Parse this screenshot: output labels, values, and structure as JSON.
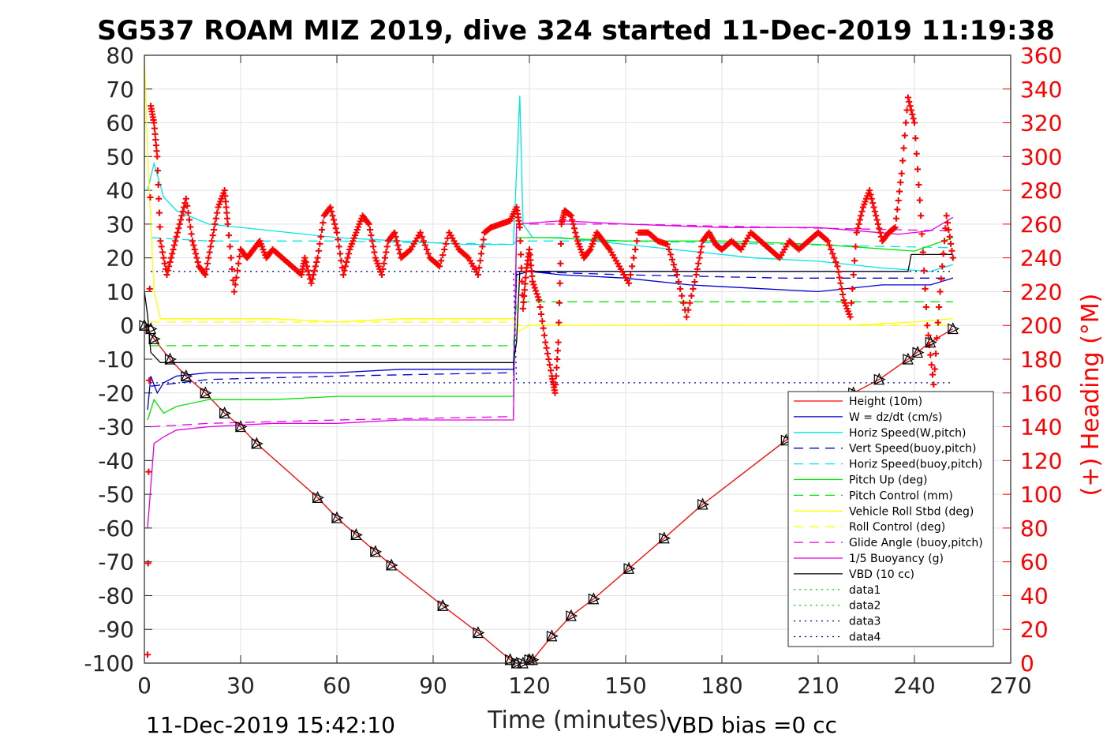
{
  "chart_data": {
    "type": "line",
    "title": "SG537 ROAM MIZ 2019, dive 324 started 11-Dec-2019 11:19:38",
    "xlabel": "Time (minutes)",
    "ylabel_right": "(+) Heading (°M)",
    "xlim": [
      0,
      270
    ],
    "ylim_left": [
      -100,
      80
    ],
    "ylim_right": [
      0,
      360
    ],
    "x_ticks": [
      "0",
      "30",
      "60",
      "90",
      "120",
      "150",
      "180",
      "210",
      "240",
      "270"
    ],
    "y_ticks_left": [
      "80",
      "70",
      "60",
      "50",
      "40",
      "30",
      "20",
      "10",
      "0",
      "-10",
      "-20",
      "-30",
      "-40",
      "-50",
      "-60",
      "-70",
      "-80",
      "-90",
      "-100"
    ],
    "y_ticks_right": [
      "360",
      "340",
      "320",
      "300",
      "280",
      "260",
      "240",
      "220",
      "200",
      "180",
      "160",
      "140",
      "120",
      "100",
      "80",
      "60",
      "40",
      "20",
      "0"
    ],
    "grid": true,
    "legend_position": "bottom-right",
    "footer_left": "11-Dec-2019 15:42:10",
    "footer_right": "VBD bias =0 cc",
    "series": [
      {
        "name": "Height (10m)",
        "color": "#ff0000",
        "style": "solid",
        "x": [
          0,
          3,
          8,
          13,
          19,
          25,
          30,
          35,
          54,
          60,
          66,
          72,
          77,
          93,
          104,
          114,
          116,
          118,
          121,
          127,
          133,
          140,
          151,
          162,
          174,
          200,
          221,
          229,
          238,
          245,
          252
        ],
        "y": [
          0,
          -4,
          -10,
          -15,
          -20,
          -26,
          -30,
          -35,
          -51,
          -57,
          -62,
          -67,
          -71,
          -83,
          -91,
          -99,
          -100,
          -100,
          -99,
          -92,
          -86,
          -81,
          -72,
          -63,
          -53,
          -34,
          -20,
          -16,
          -10,
          -5,
          -1
        ]
      },
      {
        "name": "W = dz/dt (cm/s)",
        "color": "#0000cc",
        "style": "solid",
        "x": [
          1,
          2,
          4,
          6,
          10,
          20,
          40,
          60,
          80,
          100,
          115,
          116,
          120,
          130,
          150,
          170,
          190,
          210,
          230,
          245,
          252
        ],
        "y": [
          -25,
          -15,
          -20,
          -17,
          -15,
          -14,
          -14,
          -14,
          -13,
          -13,
          -13,
          15,
          16,
          15,
          14,
          12,
          11,
          10,
          12,
          12,
          14
        ]
      },
      {
        "name": "Horiz Speed(W,pitch)",
        "color": "#00e5e5",
        "style": "solid",
        "x": [
          1,
          3,
          6,
          10,
          20,
          40,
          60,
          80,
          100,
          115,
          117,
          118,
          121,
          130,
          150,
          170,
          190,
          210,
          230,
          245,
          252
        ],
        "y": [
          40,
          48,
          38,
          34,
          30,
          28,
          26,
          25,
          24,
          24,
          68,
          30,
          26,
          26,
          24,
          22,
          20,
          19,
          17,
          16,
          18
        ]
      },
      {
        "name": "Vert Speed(buoy,pitch)",
        "color": "#0000cc",
        "style": "dash",
        "x": [
          2,
          20,
          60,
          115,
          116,
          150,
          200,
          252
        ],
        "y": [
          -18,
          -16,
          -15,
          -14,
          16,
          15,
          14,
          14
        ]
      },
      {
        "name": "Horiz Speed(buoy,pitch)",
        "color": "#00e5e5",
        "style": "dash",
        "x": [
          2,
          20,
          60,
          115,
          116,
          150,
          200,
          252
        ],
        "y": [
          26,
          25,
          25,
          24,
          25,
          25,
          24,
          23
        ]
      },
      {
        "name": "Pitch Up (deg)",
        "color": "#00e600",
        "style": "solid",
        "x": [
          1,
          3,
          6,
          10,
          20,
          40,
          60,
          80,
          100,
          115,
          116,
          125,
          150,
          180,
          210,
          240,
          252
        ],
        "y": [
          -28,
          -22,
          -26,
          -24,
          -22,
          -22,
          -21,
          -21,
          -21,
          -21,
          26,
          26,
          25,
          25,
          24,
          22,
          26
        ]
      },
      {
        "name": "Pitch Control (mm)",
        "color": "#00e600",
        "style": "dash",
        "x": [
          2,
          115,
          116,
          252
        ],
        "y": [
          -6,
          -6,
          7,
          7
        ]
      },
      {
        "name": "Vehicle Roll Stbd (deg)",
        "color": "#ffff00",
        "style": "solid",
        "x": [
          0,
          1,
          3,
          5,
          8,
          20,
          40,
          60,
          80,
          100,
          115,
          116,
          120,
          140,
          160,
          180,
          200,
          220,
          240,
          252
        ],
        "y": [
          80,
          50,
          10,
          2,
          2,
          2,
          2,
          1,
          2,
          2,
          2,
          -2,
          0,
          0,
          0,
          0,
          0,
          0,
          1,
          2
        ]
      },
      {
        "name": "Roll Control (deg)",
        "color": "#ffff00",
        "style": "dash",
        "x": [
          2,
          115,
          116,
          252
        ],
        "y": [
          1,
          1,
          0,
          0
        ]
      },
      {
        "name": "Glide Angle (buoy,pitch)",
        "color": "#e500e5",
        "style": "dash",
        "x": [
          2,
          20,
          60,
          115,
          116,
          150,
          200,
          252
        ],
        "y": [
          -30,
          -29,
          -28,
          -27,
          30,
          30,
          29,
          28
        ]
      },
      {
        "name": "1/5 Buoyancy (g)",
        "color": "#e500e5",
        "style": "solid",
        "x": [
          1,
          3,
          6,
          10,
          20,
          40,
          60,
          80,
          100,
          115,
          116,
          130,
          150,
          180,
          210,
          235,
          245,
          252
        ],
        "y": [
          -60,
          -35,
          -33,
          -31,
          -30,
          -29,
          -29,
          -28,
          -28,
          -28,
          30,
          31,
          30,
          29,
          29,
          27,
          28,
          32
        ]
      },
      {
        "name": "VBD (10 cc)",
        "color": "#000000",
        "style": "solid",
        "x": [
          0,
          1,
          2,
          5,
          10,
          115,
          116,
          117,
          120,
          130,
          238,
          239,
          252
        ],
        "y": [
          10,
          3,
          -8,
          -11,
          -11,
          -11,
          -5,
          16,
          16,
          16,
          16,
          21,
          21
        ]
      },
      {
        "name": "data1",
        "color": "#00e600",
        "style": "dot",
        "x": [],
        "y": []
      },
      {
        "name": "data2",
        "color": "#00e600",
        "style": "dot",
        "x": [],
        "y": []
      },
      {
        "name": "data3",
        "color": "#0000aa",
        "style": "dot",
        "x": [
          2,
          115,
          116,
          252
        ],
        "y": [
          16,
          16,
          -17,
          -17
        ]
      },
      {
        "name": "data4",
        "color": "#0000aa",
        "style": "dot",
        "x": [
          2,
          115,
          116,
          252
        ],
        "y": [
          -17,
          -17,
          16,
          16
        ]
      }
    ],
    "heading": {
      "name": "(+) Heading (°M)",
      "color": "#ff0000",
      "marker": "+",
      "x": [
        1,
        2,
        3,
        4,
        5,
        7,
        9,
        11,
        13,
        15,
        17,
        19,
        21,
        23,
        25,
        26,
        28,
        30,
        32,
        34,
        36,
        38,
        40,
        43,
        46,
        49,
        50,
        52,
        54,
        56,
        58,
        60,
        62,
        64,
        66,
        68,
        70,
        72,
        74,
        76,
        78,
        80,
        83,
        86,
        89,
        92,
        95,
        98,
        101,
        104,
        106,
        108,
        111,
        114,
        116,
        117,
        118,
        119,
        120,
        121,
        123,
        125,
        127,
        128,
        129,
        130,
        131,
        133,
        135,
        137,
        139,
        141,
        143,
        145,
        148,
        151,
        154,
        157,
        160,
        163,
        166,
        169,
        172,
        174,
        176,
        178,
        180,
        183,
        186,
        189,
        192,
        195,
        198,
        201,
        204,
        207,
        210,
        213,
        216,
        218,
        220,
        222,
        224,
        226,
        228,
        230,
        232,
        234,
        236,
        238,
        240,
        242,
        244,
        246,
        248,
        250,
        252
      ],
      "y": [
        5,
        330,
        320,
        300,
        250,
        230,
        245,
        260,
        275,
        250,
        235,
        230,
        250,
        270,
        280,
        260,
        220,
        245,
        240,
        245,
        250,
        240,
        245,
        240,
        235,
        230,
        240,
        225,
        240,
        265,
        270,
        255,
        230,
        245,
        255,
        265,
        260,
        240,
        230,
        250,
        255,
        240,
        245,
        255,
        240,
        235,
        255,
        245,
        240,
        230,
        255,
        258,
        260,
        262,
        270,
        258,
        210,
        232,
        245,
        226,
        215,
        190,
        170,
        160,
        190,
        260,
        268,
        265,
        250,
        240,
        245,
        255,
        250,
        245,
        235,
        225,
        255,
        255,
        250,
        248,
        230,
        205,
        230,
        250,
        255,
        248,
        245,
        250,
        245,
        255,
        250,
        245,
        240,
        250,
        245,
        250,
        255,
        250,
        235,
        215,
        205,
        255,
        270,
        280,
        265,
        250,
        255,
        258,
        290,
        335,
        320,
        265,
        200,
        165,
        220,
        265,
        240
      ]
    },
    "markers": {
      "x": [
        0,
        2,
        3,
        8,
        13,
        19,
        25,
        30,
        35,
        54,
        60,
        66,
        72,
        77,
        93,
        104,
        114,
        116,
        118,
        120,
        121,
        127,
        133,
        140,
        151,
        162,
        174,
        200,
        221,
        229,
        238,
        241,
        245,
        252
      ],
      "y": [
        0,
        -1,
        -4,
        -10,
        -15,
        -20,
        -26,
        -30,
        -35,
        -51,
        -57,
        -62,
        -67,
        -71,
        -83,
        -91,
        -99,
        -100,
        -100,
        -99,
        -99,
        -92,
        -86,
        -81,
        -72,
        -63,
        -53,
        -34,
        -20,
        -16,
        -10,
        -8,
        -5,
        -1
      ]
    }
  }
}
